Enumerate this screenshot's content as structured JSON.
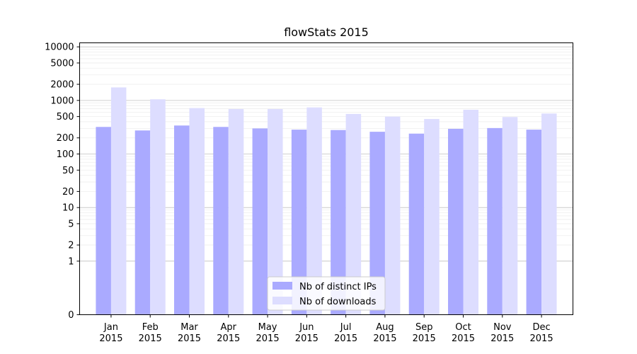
{
  "chart_data": {
    "type": "bar",
    "title": "flowStats 2015",
    "xlabel": "",
    "ylabel": "",
    "yscale": "symlog",
    "ylim": [
      0,
      10000
    ],
    "yticks": [
      0,
      1,
      2,
      5,
      10,
      20,
      50,
      100,
      200,
      500,
      1000,
      2000,
      5000,
      10000
    ],
    "grid": true,
    "legend_position": "bottom-center",
    "categories": [
      [
        "Jan",
        "2015"
      ],
      [
        "Feb",
        "2015"
      ],
      [
        "Mar",
        "2015"
      ],
      [
        "Apr",
        "2015"
      ],
      [
        "May",
        "2015"
      ],
      [
        "Jun",
        "2015"
      ],
      [
        "Jul",
        "2015"
      ],
      [
        "Aug",
        "2015"
      ],
      [
        "Sep",
        "2015"
      ],
      [
        "Oct",
        "2015"
      ],
      [
        "Nov",
        "2015"
      ],
      [
        "Dec",
        "2015"
      ]
    ],
    "series": [
      {
        "name": "Nb of distinct IPs",
        "color": "#aaaaff",
        "values": [
          320,
          275,
          340,
          320,
          300,
          285,
          280,
          260,
          240,
          295,
          305,
          285
        ]
      },
      {
        "name": "Nb of downloads",
        "color": "#ddddff",
        "values": [
          1750,
          1050,
          720,
          690,
          690,
          740,
          560,
          500,
          450,
          670,
          490,
          570
        ]
      }
    ]
  }
}
